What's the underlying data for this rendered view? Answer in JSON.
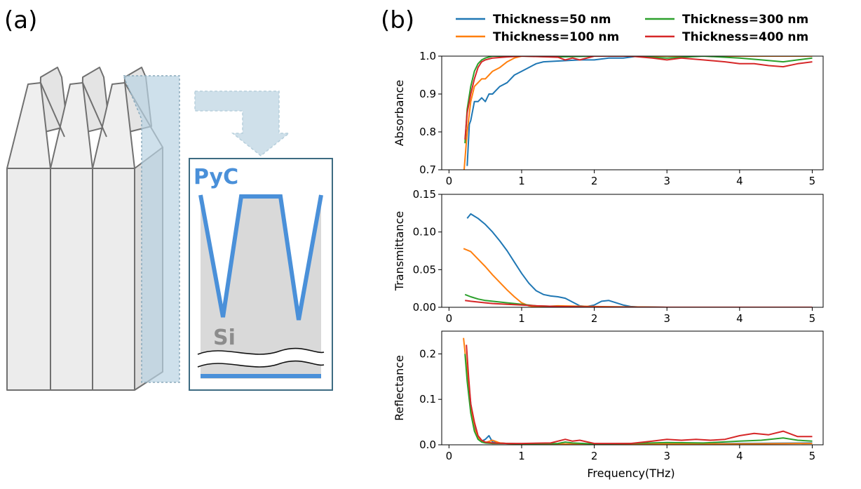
{
  "panels": {
    "a_label": "(a)",
    "b_label": "(b)"
  },
  "diagram": {
    "pyc_label": "PyC",
    "si_label": "Si",
    "colors": {
      "pyc": "#4a90d9",
      "si_fill": "#d9d9d9",
      "frame": "#3d6b82",
      "arrow": "#cfe0ea",
      "cut": "#b9d3e3"
    }
  },
  "chart_data": {
    "type": "line",
    "xlabel": "Frequency(THz)",
    "legend": {
      "placement": "top",
      "entries": [
        {
          "name": "Thickness=50 nm",
          "color": "#1f77b4"
        },
        {
          "name": "Thickness=100 nm",
          "color": "#ff7f0e"
        },
        {
          "name": "Thickness=300 nm",
          "color": "#2ca02c"
        },
        {
          "name": "Thickness=400 nm",
          "color": "#d62728"
        }
      ]
    },
    "x_ticks": [
      "0",
      "1",
      "2",
      "3",
      "4",
      "5"
    ],
    "subplots": [
      {
        "ylabel": "Absorbance",
        "xlim": [
          -0.1,
          5.15
        ],
        "ylim": [
          0.7,
          1.0
        ],
        "y_ticks": [
          0.7,
          0.8,
          0.9,
          1.0
        ],
        "y_tick_labels": [
          "0.7",
          "0.8",
          "0.9",
          "1.0"
        ],
        "series": [
          {
            "name": "Thickness=50 nm",
            "color": "#1f77b4",
            "x": [
              0.25,
              0.28,
              0.3,
              0.35,
              0.4,
              0.45,
              0.5,
              0.55,
              0.6,
              0.65,
              0.7,
              0.8,
              0.9,
              1.0,
              1.1,
              1.2,
              1.3,
              1.5,
              1.8,
              2.0,
              2.2,
              2.4,
              2.6,
              3.0,
              3.5,
              4.0,
              4.5,
              5.0
            ],
            "y": [
              0.71,
              0.82,
              0.83,
              0.88,
              0.88,
              0.89,
              0.88,
              0.9,
              0.9,
              0.91,
              0.92,
              0.93,
              0.95,
              0.96,
              0.97,
              0.98,
              0.985,
              0.987,
              0.99,
              0.99,
              0.995,
              0.995,
              1.0,
              1.0,
              1.0,
              1.0,
              1.0,
              1.0
            ]
          },
          {
            "name": "Thickness=100 nm",
            "color": "#ff7f0e",
            "x": [
              0.2,
              0.25,
              0.3,
              0.35,
              0.4,
              0.45,
              0.5,
              0.55,
              0.6,
              0.7,
              0.8,
              0.9,
              1.0,
              1.2,
              1.5,
              2.0,
              2.5,
              3.0,
              3.5,
              4.0,
              4.5,
              5.0
            ],
            "y": [
              0.68,
              0.8,
              0.88,
              0.92,
              0.93,
              0.94,
              0.94,
              0.95,
              0.96,
              0.97,
              0.985,
              0.995,
              1.0,
              1.0,
              1.0,
              1.0,
              1.0,
              1.0,
              1.0,
              1.0,
              1.0,
              1.0
            ]
          },
          {
            "name": "Thickness=300 nm",
            "color": "#2ca02c",
            "x": [
              0.22,
              0.25,
              0.3,
              0.35,
              0.4,
              0.45,
              0.5,
              0.6,
              0.8,
              1.0,
              1.5,
              2.0,
              2.5,
              3.0,
              3.5,
              4.0,
              4.3,
              4.6,
              4.8,
              5.0
            ],
            "y": [
              0.77,
              0.86,
              0.92,
              0.96,
              0.98,
              0.99,
              0.995,
              1.0,
              1.0,
              1.0,
              0.998,
              1.0,
              1.0,
              0.995,
              1.0,
              0.995,
              0.99,
              0.985,
              0.99,
              0.995
            ]
          },
          {
            "name": "Thickness=400 nm",
            "color": "#d62728",
            "x": [
              0.22,
              0.25,
              0.3,
              0.35,
              0.4,
              0.45,
              0.5,
              0.6,
              0.8,
              1.0,
              1.5,
              1.6,
              1.7,
              1.8,
              2.0,
              2.5,
              2.8,
              3.0,
              3.2,
              3.5,
              3.8,
              4.0,
              4.2,
              4.4,
              4.6,
              4.8,
              5.0
            ],
            "y": [
              0.78,
              0.85,
              0.9,
              0.94,
              0.97,
              0.985,
              0.99,
              0.995,
              0.998,
              1.0,
              0.997,
              0.99,
              0.995,
              0.99,
              1.0,
              1.0,
              0.995,
              0.99,
              0.995,
              0.99,
              0.985,
              0.98,
              0.98,
              0.975,
              0.972,
              0.98,
              0.985
            ]
          }
        ]
      },
      {
        "ylabel": "Transmittance",
        "xlim": [
          -0.1,
          5.15
        ],
        "ylim": [
          0.0,
          0.15
        ],
        "y_ticks": [
          0.0,
          0.05,
          0.1,
          0.15
        ],
        "y_tick_labels": [
          "0.00",
          "0.05",
          "0.10",
          "0.15"
        ],
        "series": [
          {
            "name": "Thickness=50 nm",
            "color": "#1f77b4",
            "x": [
              0.25,
              0.3,
              0.35,
              0.4,
              0.5,
              0.6,
              0.7,
              0.8,
              0.9,
              1.0,
              1.1,
              1.2,
              1.3,
              1.4,
              1.5,
              1.6,
              1.7,
              1.8,
              1.9,
              2.0,
              2.1,
              2.2,
              2.3,
              2.4,
              2.5,
              2.6,
              3.0,
              4.0,
              5.0
            ],
            "y": [
              0.118,
              0.124,
              0.121,
              0.118,
              0.11,
              0.1,
              0.088,
              0.075,
              0.06,
              0.045,
              0.032,
              0.022,
              0.017,
              0.015,
              0.014,
              0.012,
              0.007,
              0.002,
              0.001,
              0.003,
              0.008,
              0.009,
              0.006,
              0.003,
              0.001,
              0.0005,
              0.0,
              0.0,
              0.0
            ]
          },
          {
            "name": "Thickness=100 nm",
            "color": "#ff7f0e",
            "x": [
              0.2,
              0.25,
              0.3,
              0.4,
              0.5,
              0.6,
              0.7,
              0.8,
              0.9,
              1.0,
              1.1,
              1.2,
              1.5,
              2.0,
              3.0,
              4.0,
              5.0
            ],
            "y": [
              0.078,
              0.076,
              0.074,
              0.064,
              0.054,
              0.043,
              0.033,
              0.023,
              0.014,
              0.006,
              0.002,
              0.0005,
              0.002,
              0.001,
              0.0,
              0.0,
              0.0
            ]
          },
          {
            "name": "Thickness=300 nm",
            "color": "#2ca02c",
            "x": [
              0.22,
              0.3,
              0.4,
              0.5,
              0.6,
              0.7,
              0.8,
              0.9,
              1.0,
              1.2,
              1.5,
              2.0,
              3.0,
              4.0,
              5.0
            ],
            "y": [
              0.017,
              0.014,
              0.011,
              0.009,
              0.008,
              0.007,
              0.006,
              0.005,
              0.004,
              0.002,
              0.001,
              0.0005,
              0.0,
              0.0,
              0.0
            ]
          },
          {
            "name": "Thickness=400 nm",
            "color": "#d62728",
            "x": [
              0.22,
              0.3,
              0.4,
              0.5,
              0.6,
              0.8,
              1.0,
              1.2,
              1.5,
              2.0,
              3.0,
              4.0,
              5.0
            ],
            "y": [
              0.009,
              0.008,
              0.007,
              0.006,
              0.005,
              0.004,
              0.003,
              0.002,
              0.001,
              0.0005,
              0.0,
              0.0,
              0.0
            ]
          }
        ]
      },
      {
        "ylabel": "Reflectance",
        "xlim": [
          -0.1,
          5.15
        ],
        "ylim": [
          0.0,
          0.25
        ],
        "y_ticks": [
          0.0,
          0.1,
          0.2
        ],
        "y_tick_labels": [
          "0.0",
          "0.1",
          "0.2"
        ],
        "series": [
          {
            "name": "Thickness=50 nm",
            "color": "#1f77b4",
            "x": [
              0.25,
              0.3,
              0.35,
              0.4,
              0.45,
              0.5,
              0.55,
              0.6,
              0.65,
              0.7,
              0.8,
              1.0,
              1.5,
              2.0,
              3.0,
              4.0,
              5.0
            ],
            "y": [
              0.17,
              0.09,
              0.04,
              0.015,
              0.008,
              0.012,
              0.02,
              0.006,
              0.005,
              0.004,
              0.003,
              0.002,
              0.002,
              0.001,
              0.002,
              0.003,
              0.004
            ]
          },
          {
            "name": "Thickness=100 nm",
            "color": "#ff7f0e",
            "x": [
              0.2,
              0.25,
              0.3,
              0.35,
              0.4,
              0.45,
              0.5,
              0.6,
              0.7,
              0.8,
              1.0,
              1.5,
              2.0,
              3.0,
              4.0,
              5.0
            ],
            "y": [
              0.235,
              0.16,
              0.08,
              0.035,
              0.015,
              0.008,
              0.005,
              0.01,
              0.004,
              0.003,
              0.002,
              0.002,
              0.001,
              0.002,
              0.002,
              0.003
            ]
          },
          {
            "name": "Thickness=300 nm",
            "color": "#2ca02c",
            "x": [
              0.22,
              0.25,
              0.3,
              0.35,
              0.4,
              0.45,
              0.5,
              0.6,
              0.8,
              1.0,
              1.5,
              1.6,
              1.7,
              2.0,
              2.5,
              3.0,
              3.5,
              4.0,
              4.3,
              4.6,
              4.8,
              5.0
            ],
            "y": [
              0.2,
              0.14,
              0.07,
              0.03,
              0.012,
              0.006,
              0.004,
              0.003,
              0.003,
              0.002,
              0.003,
              0.006,
              0.004,
              0.002,
              0.003,
              0.005,
              0.004,
              0.008,
              0.01,
              0.015,
              0.01,
              0.008
            ]
          },
          {
            "name": "Thickness=400 nm",
            "color": "#d62728",
            "x": [
              0.24,
              0.27,
              0.3,
              0.35,
              0.4,
              0.45,
              0.5,
              0.6,
              0.8,
              1.0,
              1.4,
              1.6,
              1.7,
              1.8,
              2.0,
              2.5,
              2.8,
              3.0,
              3.2,
              3.4,
              3.6,
              3.8,
              4.0,
              4.2,
              4.4,
              4.6,
              4.8,
              5.0
            ],
            "y": [
              0.22,
              0.15,
              0.09,
              0.05,
              0.02,
              0.01,
              0.006,
              0.004,
              0.003,
              0.003,
              0.004,
              0.012,
              0.008,
              0.01,
              0.003,
              0.003,
              0.008,
              0.012,
              0.01,
              0.012,
              0.01,
              0.012,
              0.02,
              0.025,
              0.022,
              0.03,
              0.018,
              0.018
            ]
          }
        ]
      }
    ]
  }
}
